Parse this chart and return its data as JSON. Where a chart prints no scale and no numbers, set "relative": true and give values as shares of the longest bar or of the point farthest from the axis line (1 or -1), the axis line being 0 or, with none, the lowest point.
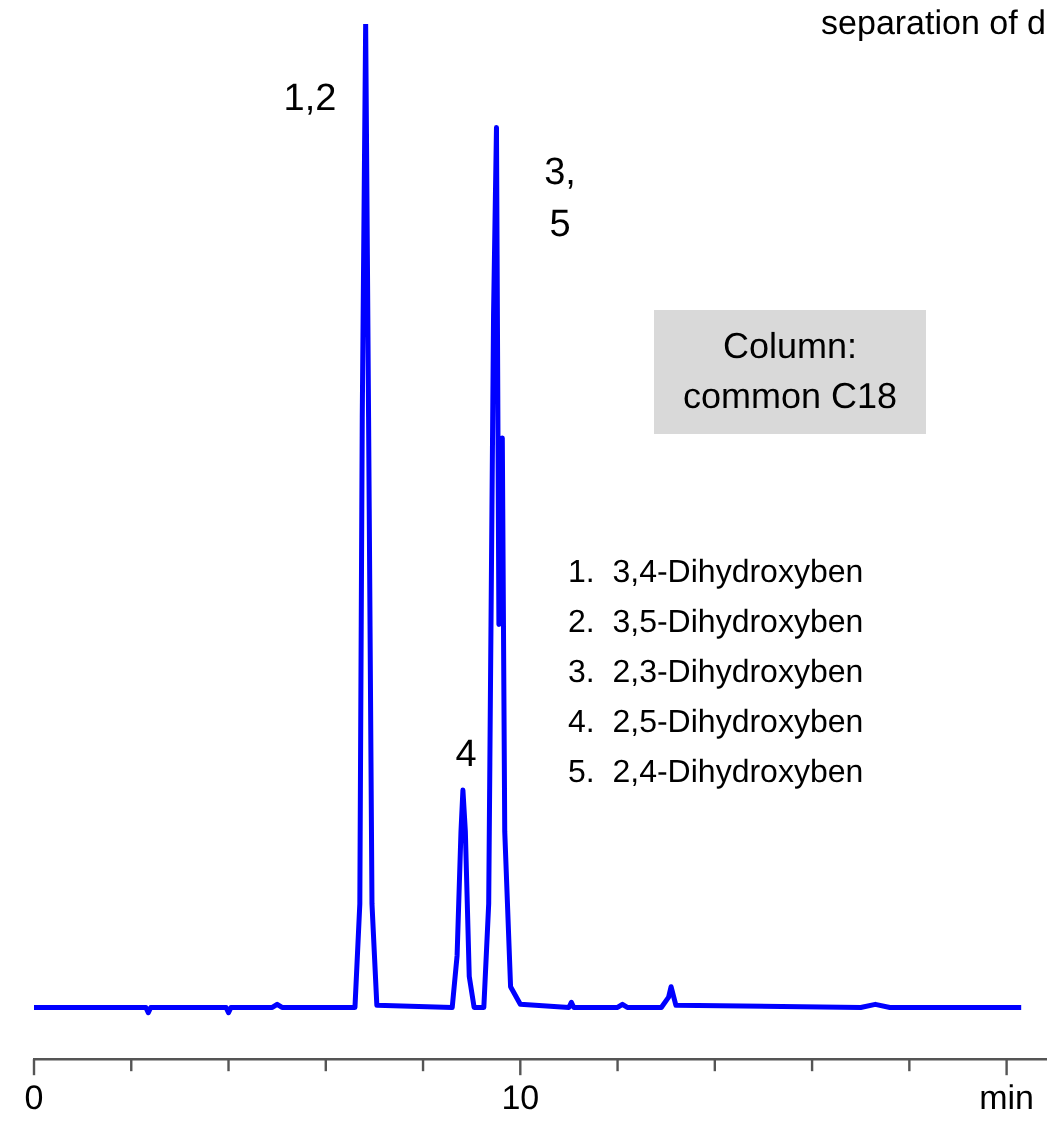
{
  "chart_data": {
    "type": "line",
    "title": "separation of d",
    "relative": true,
    "legend": false,
    "grid": false,
    "marker": "none",
    "line_style": "solid",
    "x": [
      0,
      2.3,
      2.35,
      2.4,
      3.95,
      4.0,
      4.05,
      4.9,
      5.0,
      5.1,
      6.6,
      6.7,
      6.75,
      6.82,
      6.88,
      6.95,
      7.05,
      8.6,
      8.7,
      8.78,
      8.82,
      8.87,
      8.95,
      9.05,
      9.25,
      9.35,
      9.45,
      9.51,
      9.56,
      9.6,
      9.63,
      9.68,
      9.8,
      10.0,
      11.0,
      11.05,
      11.1,
      12.0,
      12.1,
      12.2,
      12.9,
      13.05,
      13.1,
      13.2,
      17.0,
      17.3,
      17.6,
      18.0,
      20.3
    ],
    "series": [
      {
        "color": "#0000ff",
        "values": [
          0.05,
          0.05,
          0.045,
          0.05,
          0.05,
          0.045,
          0.05,
          0.05,
          0.053,
          0.05,
          0.05,
          0.15,
          0.62,
          1.0,
          0.62,
          0.15,
          0.052,
          0.05,
          0.1,
          0.22,
          0.26,
          0.22,
          0.08,
          0.05,
          0.05,
          0.15,
          0.72,
          0.9,
          0.42,
          0.58,
          0.6,
          0.22,
          0.07,
          0.053,
          0.05,
          0.055,
          0.05,
          0.05,
          0.053,
          0.05,
          0.05,
          0.06,
          0.07,
          0.052,
          0.05,
          0.053,
          0.05,
          0.05,
          0.05
        ]
      }
    ],
    "xlim": [
      0,
      20.8
    ],
    "xticks": [
      0,
      {
        "value": 2,
        "label": null
      },
      {
        "value": 4,
        "label": null
      },
      {
        "value": 6,
        "label": null
      },
      {
        "value": 8,
        "label": null
      },
      10,
      {
        "value": 12,
        "label": null
      },
      {
        "value": 14,
        "label": null
      },
      {
        "value": 16,
        "label": null
      },
      {
        "value": 18,
        "label": null
      },
      {
        "value": 20,
        "label": "min"
      }
    ],
    "annotations": [
      "1,2",
      "3,\n5",
      "4",
      "Column:\ncommon C18",
      "1.  3,4-Dihydroxyben",
      "2.  3,5-Dihydroxyben",
      "3.  2,3-Dihydroxyben",
      "4.  2,5-Dihydroxyben",
      "5.  2,4-Dihydroxyben"
    ]
  }
}
